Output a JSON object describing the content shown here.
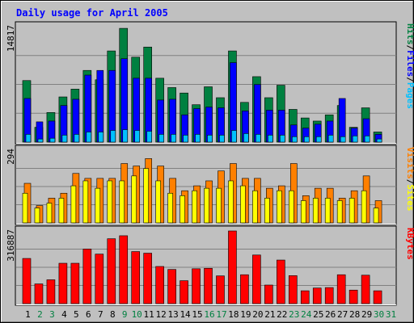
{
  "chart_data": {
    "type": "bar",
    "title": "Daily usage for April 2005",
    "categories": [
      "1",
      "2",
      "3",
      "4",
      "5",
      "6",
      "7",
      "8",
      "9",
      "10",
      "11",
      "12",
      "13",
      "14",
      "15",
      "16",
      "17",
      "18",
      "19",
      "20",
      "21",
      "22",
      "23",
      "24",
      "25",
      "26",
      "27",
      "28",
      "29",
      "30",
      "31"
    ],
    "weekend_days": [
      "2",
      "3",
      "9",
      "10",
      "16",
      "17",
      "23",
      "24",
      "30",
      "31"
    ],
    "colors": {
      "background": "#c0c0c0",
      "title": "#0000ff",
      "hits": "#008040",
      "files": "#0000ff",
      "pages": "#00c0ff",
      "visits": "#ff8000",
      "sites": "#ffff00",
      "kbytes": "#ff0000",
      "weekday_label": "#000000",
      "weekend_label": "#008040"
    },
    "panels": [
      {
        "id": "requests",
        "max_label": "14817",
        "ymax": 14817,
        "legend": [
          "Pages",
          "/",
          "Files",
          "/",
          "Hits"
        ],
        "series": [
          {
            "name": "Hits",
            "values": [
              7900,
              1900,
              3800,
              5800,
              6800,
              9200,
              8000,
              11700,
              14600,
              10900,
              12200,
              8200,
              7000,
              6300,
              4800,
              7100,
              5700,
              11700,
              5100,
              8400,
              5700,
              7300,
              4200,
              3100,
              2700,
              3500,
              4700,
              1900,
              4400,
              1300,
              0
            ]
          },
          {
            "name": "Files",
            "values": [
              5600,
              2600,
              2700,
              4700,
              5500,
              8600,
              9200,
              9200,
              10700,
              8200,
              8200,
              5400,
              5500,
              3500,
              4300,
              4500,
              4400,
              10200,
              4000,
              7400,
              4100,
              4100,
              2200,
              1800,
              2300,
              2700,
              5600,
              1800,
              3000,
              1000,
              0
            ]
          },
          {
            "name": "Pages",
            "values": [
              1000,
              400,
              500,
              900,
              1000,
              1300,
              1300,
              1500,
              1600,
              1500,
              1400,
              1000,
              1000,
              900,
              1000,
              900,
              900,
              1500,
              1100,
              1000,
              900,
              900,
              700,
              700,
              700,
              900,
              700,
              800,
              800,
              400,
              0
            ]
          }
        ]
      },
      {
        "id": "visitors",
        "max_label": "294",
        "ymax": 294,
        "legend": [
          "Sites",
          "/",
          "Visits"
        ],
        "series": [
          {
            "name": "Visits",
            "values": [
              160,
              70,
              100,
              120,
              200,
              180,
              180,
              180,
              240,
              230,
              260,
              230,
              180,
              130,
              150,
              170,
              210,
              240,
              180,
              180,
              140,
              150,
              240,
              110,
              140,
              140,
              100,
              130,
              190,
              90,
              0
            ]
          },
          {
            "name": "Sites",
            "values": [
              120,
              60,
              80,
              100,
              150,
              170,
              140,
              170,
              170,
              190,
              220,
              170,
              120,
              110,
              130,
              140,
              140,
              170,
              150,
              130,
              100,
              130,
              130,
              90,
              100,
              100,
              90,
              100,
              130,
              60,
              0
            ]
          }
        ]
      },
      {
        "id": "volume",
        "max_label": "316887",
        "ymax": 316887,
        "legend": [
          "KBytes"
        ],
        "series": [
          {
            "name": "KBytes",
            "values": [
              197000,
              86000,
              104000,
              176000,
              176000,
              238000,
              216000,
              283000,
              296000,
              227000,
              220000,
              162000,
              149000,
              100000,
              152000,
              154000,
              121000,
              316887,
              126000,
              212000,
              81000,
              190000,
              122000,
              56000,
              68000,
              70000,
              126000,
              59000,
              124000,
              56000,
              0
            ]
          }
        ]
      }
    ]
  }
}
